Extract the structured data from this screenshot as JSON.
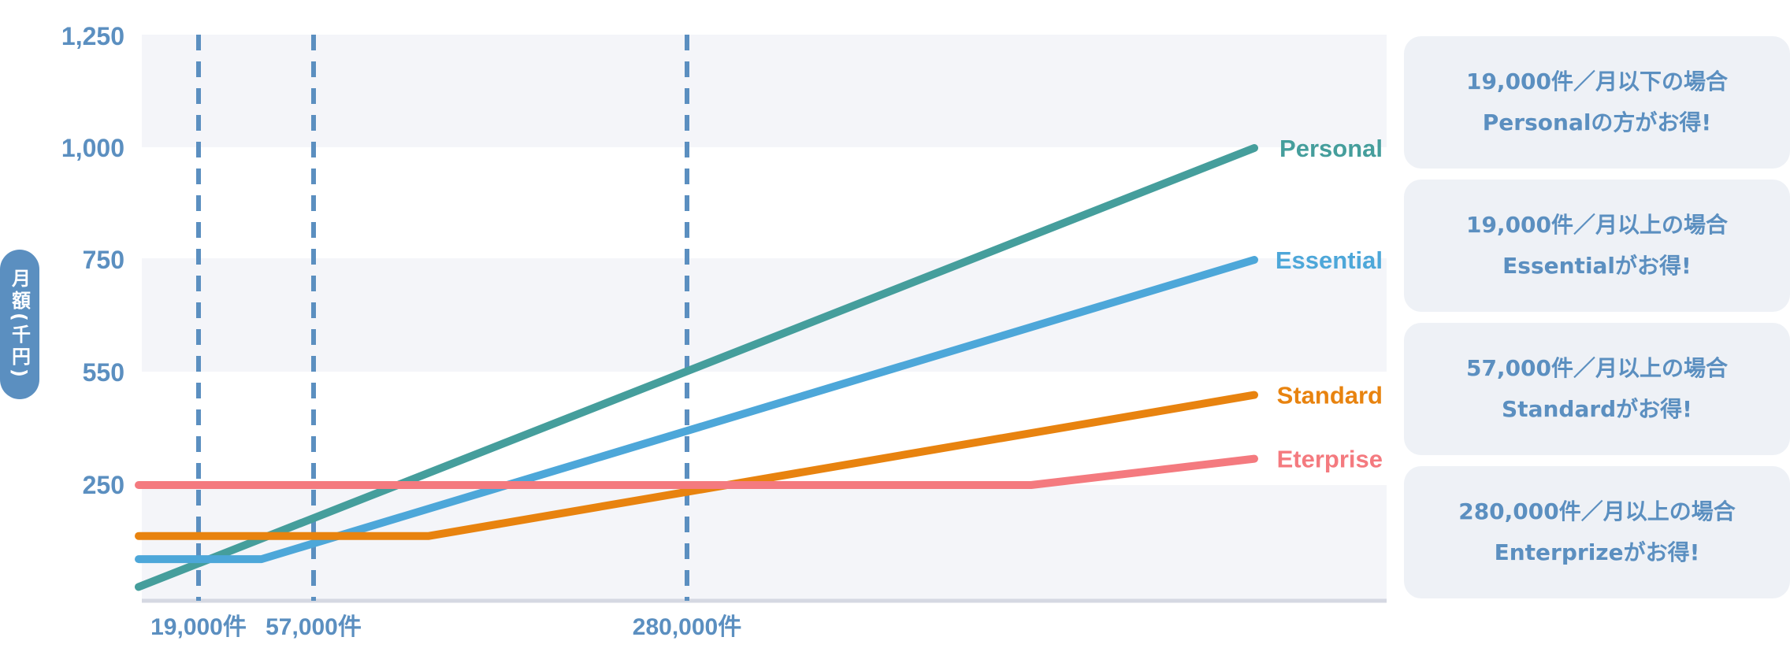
{
  "chart_data": {
    "type": "line",
    "ylabel": "月額(千円)",
    "y_ticks": [
      "1,250",
      "1,000",
      "750",
      "550",
      "250"
    ],
    "x_markers": [
      "19,000件",
      "57,000件",
      "280,000件"
    ],
    "series": [
      {
        "name": "Personal",
        "color": "#459e9c",
        "points": [
          [
            0,
            30
          ],
          [
            1000,
            1000
          ]
        ]
      },
      {
        "name": "Essential",
        "color": "#4da7d9",
        "points": [
          [
            0,
            90
          ],
          [
            110,
            90
          ],
          [
            1000,
            750
          ]
        ]
      },
      {
        "name": "Standard",
        "color": "#e8830f",
        "points": [
          [
            0,
            140
          ],
          [
            260,
            140
          ],
          [
            1000,
            490
          ]
        ]
      },
      {
        "name": "Eterprise",
        "color": "#f47a7f",
        "points": [
          [
            0,
            250
          ],
          [
            800,
            250
          ],
          [
            1000,
            320
          ]
        ]
      }
    ],
    "grid": "alternating horizontal bands",
    "legend": "right end of each line"
  },
  "cards": [
    {
      "line1": "19,000件／月以下の場合",
      "line2": "Personalの方がお得!"
    },
    {
      "line1": "19,000件／月以上の場合",
      "line2": "Essentialがお得!"
    },
    {
      "line1": "57,000件／月以上の場合",
      "line2": "Standardがお得!"
    },
    {
      "line1": "280,000件／月以上の場合",
      "line2": "Enterprizeがお得!"
    }
  ],
  "colors": {
    "axis_text": "#5b8fc0",
    "band": "#f4f5f9",
    "card_bg": "#eef1f6",
    "marker_line": "#5b8fc0"
  }
}
